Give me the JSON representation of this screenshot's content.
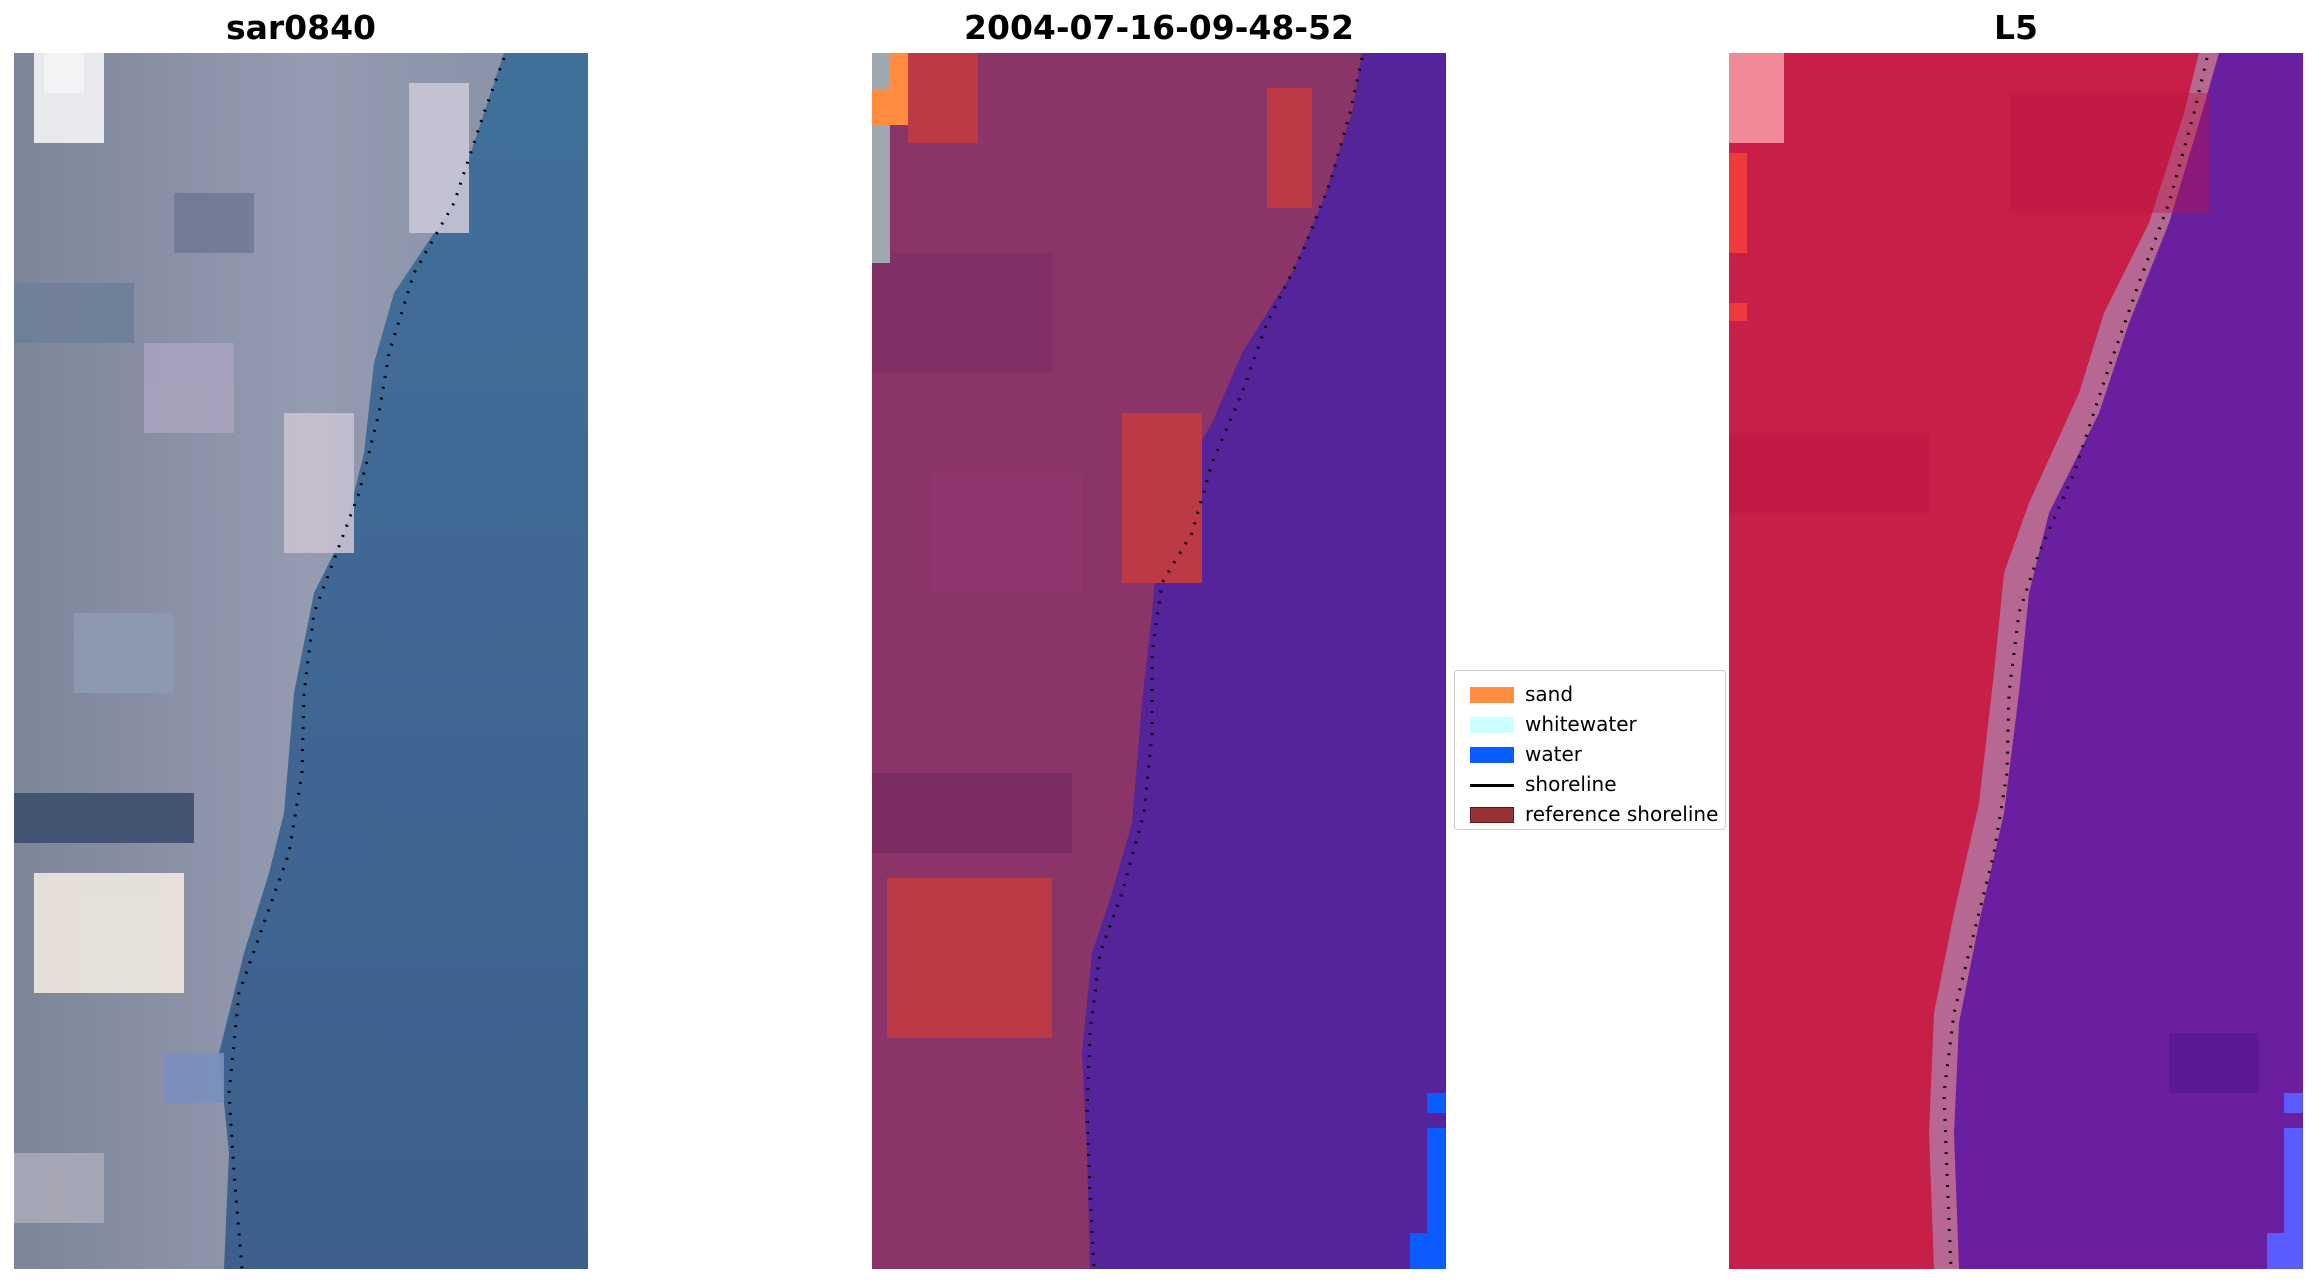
{
  "panels": [
    {
      "title": "sar0840"
    },
    {
      "title": "2004-07-16-09-48-52"
    },
    {
      "title": "L5"
    }
  ],
  "legend": {
    "items": [
      {
        "label": "sand",
        "color": "#ff8c3f",
        "kind": "patch"
      },
      {
        "label": "whitewater",
        "color": "#ccffff",
        "kind": "patch"
      },
      {
        "label": "water",
        "color": "#0a5cff",
        "kind": "patch"
      },
      {
        "label": "shoreline",
        "color": "#000000",
        "kind": "line"
      },
      {
        "label": "reference shoreline",
        "color": "#993333",
        "kind": "patch"
      }
    ]
  },
  "colors": {
    "rgb_water": "#3f6a96",
    "rgb_land": "#8c93a6",
    "class_land": "#8a3468",
    "class_water": "#55249a",
    "class_sand": "#ff8c3f",
    "class_ref": "#bb3a46",
    "class_blue": "#0a5cff",
    "swir_land": "#c71f48",
    "swir_water": "#6a1fa0",
    "shoreline_dots": "#000000"
  }
}
